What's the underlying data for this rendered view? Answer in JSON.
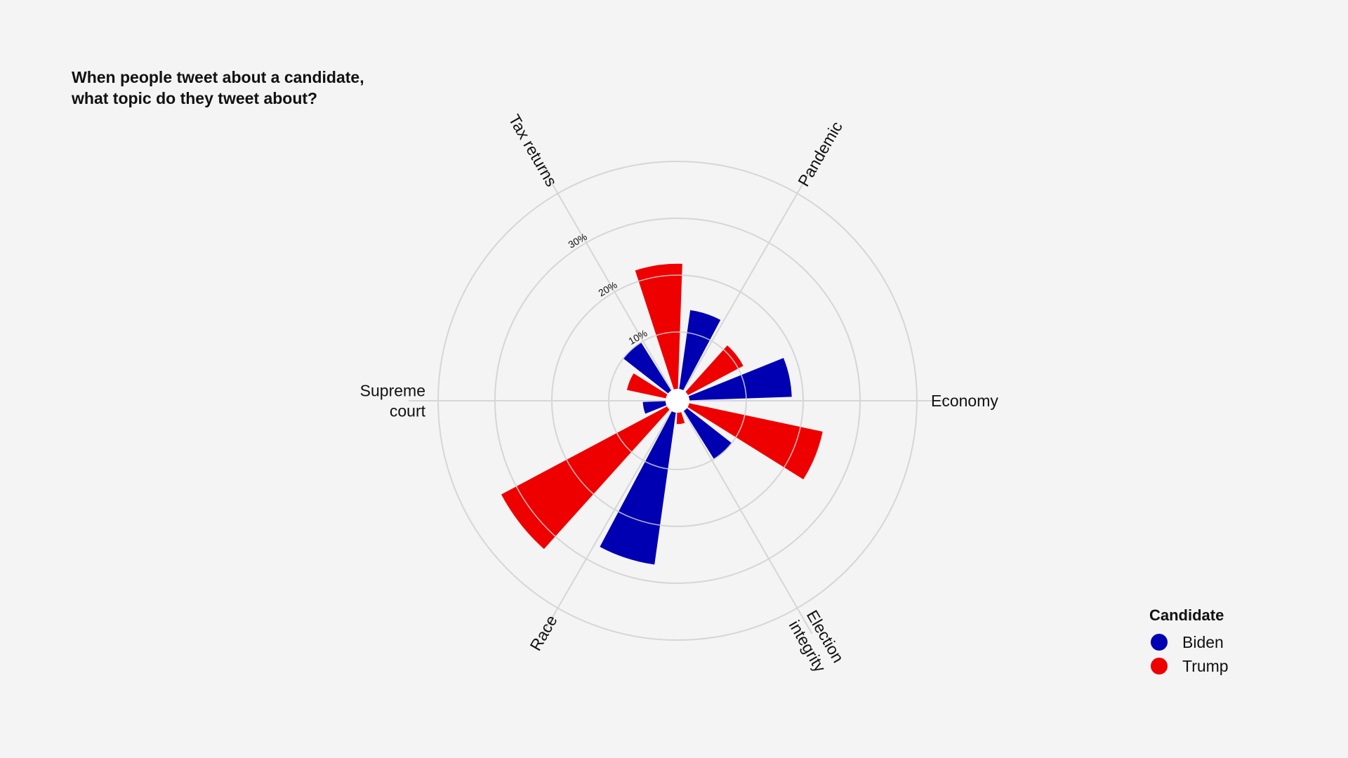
{
  "chart_data": {
    "type": "polar-bar",
    "title_lines": [
      "When people tweet about a candidate,",
      "what topic do they tweet about?"
    ],
    "categories": [
      "Economy",
      "Pandemic",
      "Tax returns",
      "Supreme court",
      "Race",
      "Election integrity"
    ],
    "category_label_lines": [
      [
        "Economy"
      ],
      [
        "Pandemic"
      ],
      [
        "Tax returns"
      ],
      [
        "Supreme",
        "court"
      ],
      [
        "Race"
      ],
      [
        "Election",
        "integrity"
      ]
    ],
    "series": [
      {
        "name": "Biden",
        "color": "#0000b3",
        "values": [
          18,
          14,
          10,
          4,
          27,
          10
        ]
      },
      {
        "name": "Trump",
        "color": "#ee0000",
        "values": [
          11,
          22,
          7,
          33,
          2,
          24
        ]
      }
    ],
    "radial_ticks": [
      10,
      20,
      30
    ],
    "radial_tick_labels": [
      "10%",
      "20%",
      "30%"
    ],
    "rmax": 40,
    "grid": true,
    "legend": {
      "title": "Candidate",
      "position": "bottom-right"
    }
  }
}
